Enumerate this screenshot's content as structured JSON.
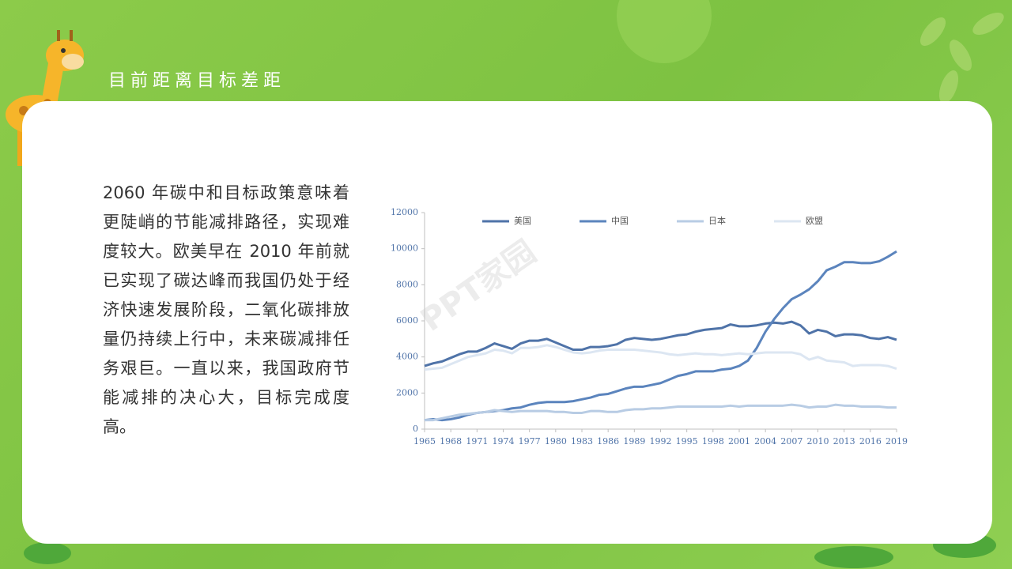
{
  "header": {
    "title": "目前距离目标差距"
  },
  "body": {
    "paragraph": "2060 年碳中和目标政策意味着更陡峭的节能减排路径，实现难度较大。欧美早在 2010 年前就已实现了碳达峰而我国仍处于经济快速发展阶段，二氧化碳排放量仍持续上行中，未来碳减排任务艰巨。一直以来，我国政府节能减排的决心大，目标完成度高。"
  },
  "watermark": "PPT家园",
  "chart_data": {
    "type": "line",
    "legend": "top",
    "x": [
      1965,
      1966,
      1967,
      1968,
      1969,
      1970,
      1971,
      1972,
      1973,
      1974,
      1975,
      1976,
      1977,
      1978,
      1979,
      1980,
      1981,
      1982,
      1983,
      1984,
      1985,
      1986,
      1987,
      1988,
      1989,
      1990,
      1991,
      1992,
      1993,
      1994,
      1995,
      1996,
      1997,
      1998,
      1999,
      2000,
      2001,
      2002,
      2003,
      2004,
      2005,
      2006,
      2007,
      2008,
      2009,
      2010,
      2011,
      2012,
      2013,
      2014,
      2015,
      2016,
      2017,
      2018,
      2019
    ],
    "xlim": [
      1965,
      2019
    ],
    "xticks": [
      1965,
      1968,
      1971,
      1974,
      1977,
      1980,
      1983,
      1986,
      1989,
      1992,
      1995,
      1998,
      2001,
      2004,
      2007,
      2010,
      2013,
      2016,
      2019
    ],
    "ylim": [
      0,
      12000
    ],
    "yticks": [
      0,
      2000,
      4000,
      6000,
      8000,
      10000,
      12000
    ],
    "series": [
      {
        "name": "美国",
        "color": "#4f73a8",
        "values": [
          3500,
          3650,
          3750,
          3950,
          4150,
          4300,
          4300,
          4500,
          4750,
          4600,
          4450,
          4750,
          4900,
          4900,
          5000,
          4800,
          4600,
          4400,
          4400,
          4550,
          4550,
          4600,
          4700,
          4950,
          5050,
          5000,
          4950,
          5000,
          5100,
          5200,
          5250,
          5400,
          5500,
          5550,
          5600,
          5800,
          5700,
          5700,
          5750,
          5850,
          5900,
          5850,
          5950,
          5750,
          5300,
          5500,
          5400,
          5150,
          5250,
          5250,
          5200,
          5050,
          5000,
          5100,
          4950
        ]
      },
      {
        "name": "中国",
        "color": "#5b84bd",
        "values": [
          500,
          550,
          500,
          550,
          650,
          800,
          900,
          950,
          1000,
          1050,
          1150,
          1200,
          1350,
          1450,
          1500,
          1500,
          1500,
          1550,
          1650,
          1750,
          1900,
          1950,
          2100,
          2250,
          2350,
          2350,
          2450,
          2550,
          2750,
          2950,
          3050,
          3200,
          3200,
          3200,
          3300,
          3350,
          3500,
          3800,
          4500,
          5400,
          6100,
          6700,
          7200,
          7450,
          7750,
          8200,
          8800,
          9000,
          9250,
          9250,
          9200,
          9200,
          9300,
          9550,
          9850
        ]
      },
      {
        "name": "日本",
        "color": "#b8cce4",
        "values": [
          500,
          500,
          600,
          700,
          800,
          850,
          900,
          950,
          1050,
          1000,
          950,
          1000,
          1000,
          1000,
          1000,
          950,
          950,
          900,
          900,
          1000,
          1000,
          950,
          950,
          1050,
          1100,
          1100,
          1150,
          1150,
          1200,
          1250,
          1250,
          1250,
          1250,
          1250,
          1250,
          1300,
          1250,
          1300,
          1300,
          1300,
          1300,
          1300,
          1350,
          1300,
          1200,
          1250,
          1250,
          1350,
          1300,
          1300,
          1250,
          1250,
          1250,
          1200,
          1200
        ]
      },
      {
        "name": "欧盟",
        "color": "#dce6f2",
        "values": [
          3300,
          3350,
          3400,
          3600,
          3800,
          4000,
          4100,
          4200,
          4400,
          4350,
          4200,
          4500,
          4500,
          4550,
          4650,
          4550,
          4400,
          4250,
          4200,
          4250,
          4350,
          4400,
          4400,
          4400,
          4400,
          4350,
          4300,
          4250,
          4150,
          4100,
          4150,
          4200,
          4150,
          4150,
          4100,
          4150,
          4200,
          4150,
          4200,
          4250,
          4250,
          4250,
          4250,
          4150,
          3850,
          4000,
          3800,
          3750,
          3700,
          3500,
          3550,
          3550,
          3550,
          3500,
          3350
        ]
      }
    ]
  }
}
